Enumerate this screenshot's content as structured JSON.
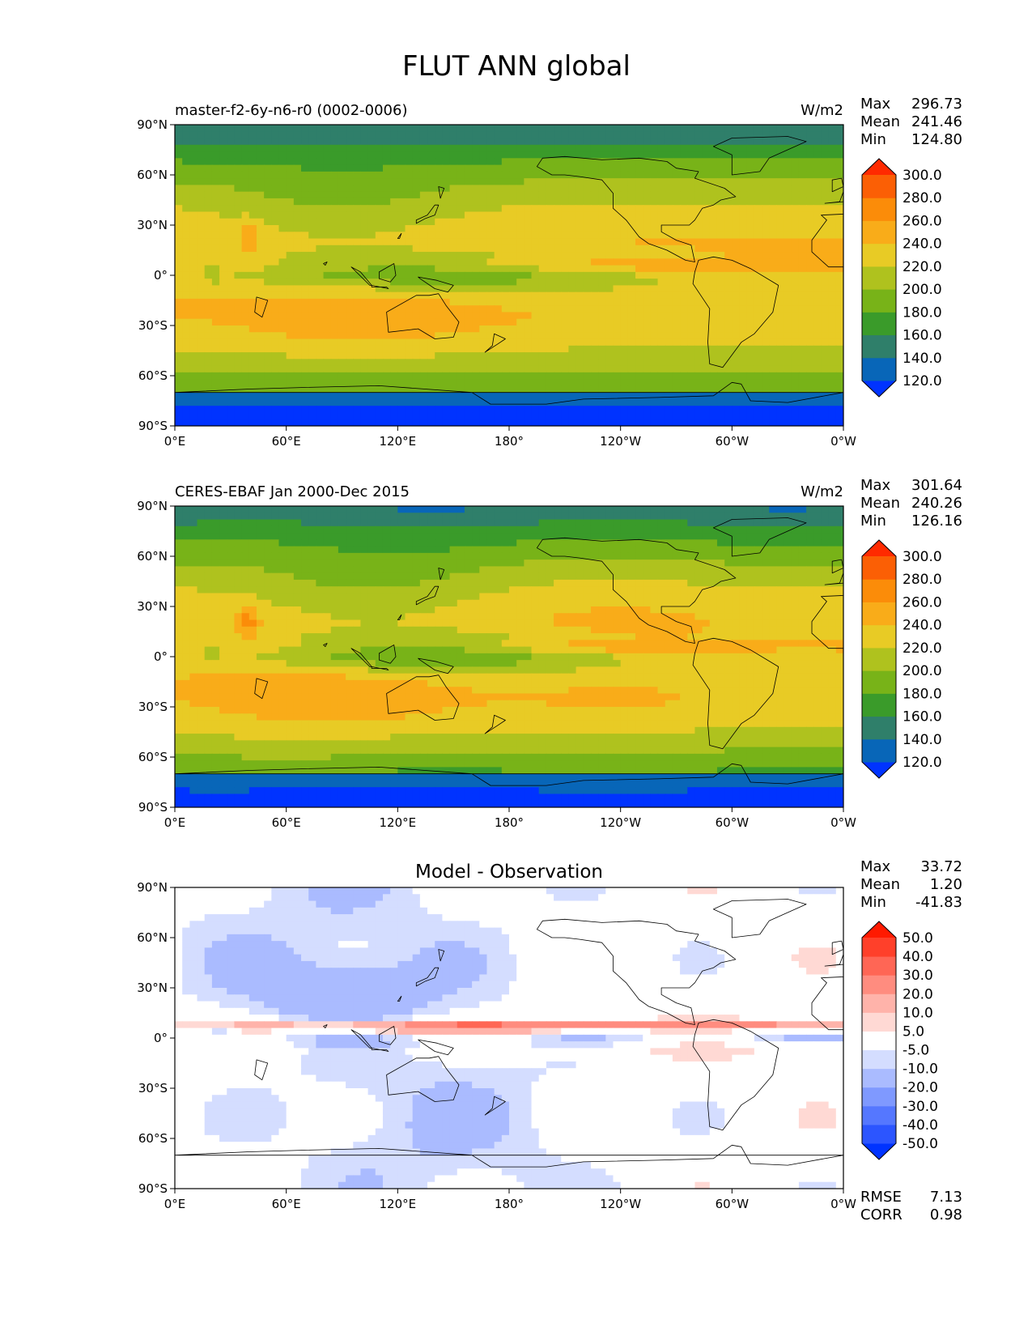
{
  "title": "FLUT ANN global",
  "lon_ticks": [
    "0°E",
    "60°E",
    "120°E",
    "180°",
    "120°W",
    "60°W",
    "0°W"
  ],
  "lat_ticks": [
    "90°N",
    "60°N",
    "30°N",
    "0°",
    "30°S",
    "60°S",
    "90°S"
  ],
  "stat_labels": {
    "max": "Max",
    "mean": "Mean",
    "min": "Min"
  },
  "panels": [
    {
      "id": "model",
      "left_title": "master-f2-6y-n6-r0 (0002-0006)",
      "center_title": "",
      "units": "W/m2",
      "stats": {
        "max": "296.73",
        "mean": "241.46",
        "min": "124.80"
      },
      "colorbar": {
        "levels": [
          "120.0",
          "140.0",
          "160.0",
          "180.0",
          "200.0",
          "220.0",
          "240.0",
          "260.0",
          "280.0",
          "300.0"
        ],
        "colors": [
          "#0033ff",
          "#0866b8",
          "#2f7f6a",
          "#3a9b2a",
          "#78b318",
          "#afc21e",
          "#e8cb25",
          "#f9ac19",
          "#fb8c09",
          "#fb5f05",
          "#ff2a00"
        ]
      },
      "field": "model"
    },
    {
      "id": "obs",
      "left_title": "CERES-EBAF Jan 2000-Dec 2015",
      "center_title": "",
      "units": "W/m2",
      "stats": {
        "max": "301.64",
        "mean": "240.26",
        "min": "126.16"
      },
      "colorbar": {
        "levels": [
          "120.0",
          "140.0",
          "160.0",
          "180.0",
          "200.0",
          "220.0",
          "240.0",
          "260.0",
          "280.0",
          "300.0"
        ],
        "colors": [
          "#0033ff",
          "#0866b8",
          "#2f7f6a",
          "#3a9b2a",
          "#78b318",
          "#afc21e",
          "#e8cb25",
          "#f9ac19",
          "#fb8c09",
          "#fb5f05",
          "#ff2a00"
        ]
      },
      "field": "obs"
    },
    {
      "id": "diff",
      "left_title": "",
      "center_title": "Model - Observation",
      "units": "",
      "stats": {
        "max": "33.72",
        "mean": "1.20",
        "min": "-41.83"
      },
      "colorbar": {
        "levels": [
          "-50.0",
          "-40.0",
          "-30.0",
          "-20.0",
          "-10.0",
          "-5.0",
          "5.0",
          "10.0",
          "20.0",
          "30.0",
          "40.0",
          "50.0"
        ],
        "colors": [
          "#0033ff",
          "#2c55ff",
          "#5577ff",
          "#7f99ff",
          "#aabbff",
          "#d4ddff",
          "#ffffff",
          "#ffd9d4",
          "#ffb3aa",
          "#ff8c7f",
          "#ff6655",
          "#ff402a",
          "#ff1a00"
        ]
      },
      "metrics": {
        "rmse_label": "RMSE",
        "rmse": "7.13",
        "corr_label": "CORR",
        "corr": "0.98"
      },
      "field": "diff"
    }
  ]
}
